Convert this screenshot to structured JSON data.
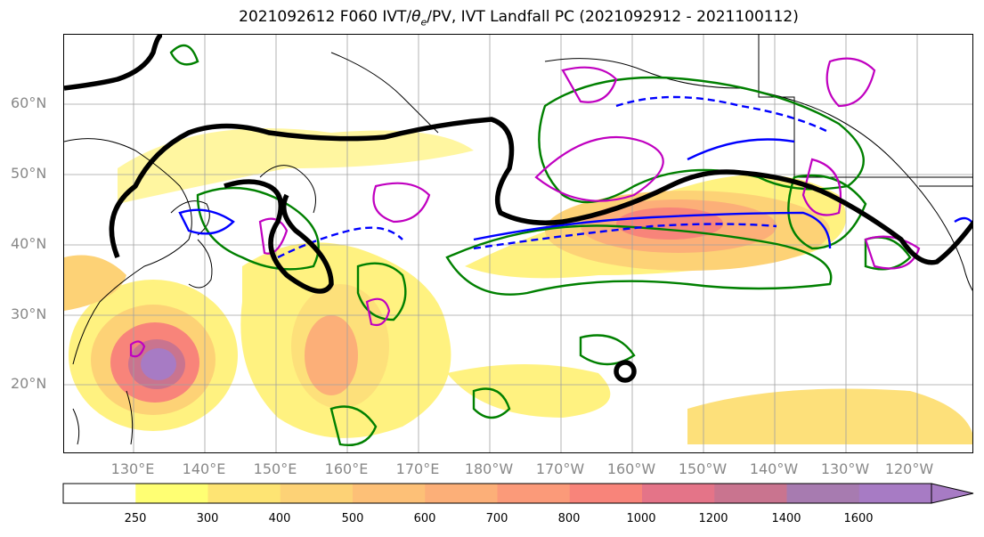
{
  "title": "2021092612 F060 IVT/θe/PV, IVT Landfall PC (2021092912 - 2021100112)",
  "title_parts": {
    "prefix": "2021092612 F060 IVT/",
    "theta": "θ",
    "sub": "e",
    "suffix": "/PV, IVT Landfall PC (2021092912 - 2021100112)"
  },
  "lat_labels": [
    "60°N",
    "50°N",
    "40°N",
    "30°N",
    "20°N"
  ],
  "lon_labels": [
    "130°E",
    "140°E",
    "150°E",
    "160°E",
    "170°E",
    "180°W",
    "170°W",
    "160°W",
    "150°W",
    "140°W",
    "130°W",
    "120°W"
  ],
  "colorbar": {
    "ticks": [
      "250",
      "300",
      "400",
      "500",
      "600",
      "700",
      "800",
      "1000",
      "1200",
      "1400",
      "1600"
    ],
    "colors": [
      "#ffffff",
      "#ffff73",
      "#fee473",
      "#fdd276",
      "#fdc077",
      "#fcaf78",
      "#fb9a79",
      "#f8847a",
      "#e47488",
      "#c9748f",
      "#a77bb0",
      "#a77bc4"
    ],
    "extend": "max"
  },
  "contour_colors": {
    "pv_black": "#000000",
    "theta_blue": "#0000ff",
    "green": "#008000",
    "magenta": "#c000c0"
  }
}
